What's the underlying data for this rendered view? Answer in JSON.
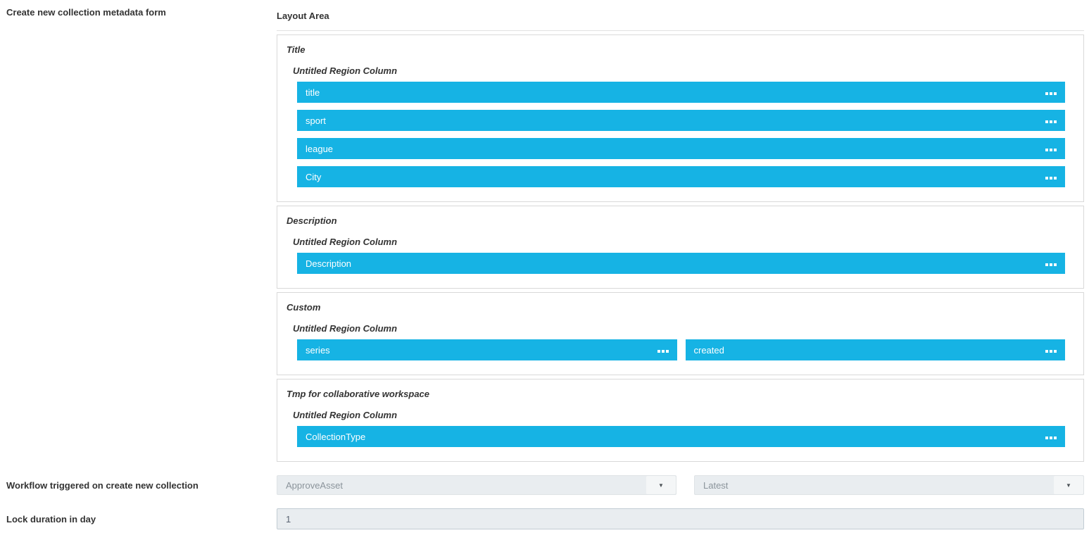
{
  "header": {
    "form_label": "Create new collection metadata form",
    "layout_area_label": "Layout Area"
  },
  "sections": [
    {
      "title": "Title",
      "region_label": "Untitled Region Column",
      "fields": [
        "title",
        "sport",
        "league",
        "City"
      ]
    },
    {
      "title": "Description",
      "region_label": "Untitled Region Column",
      "fields": [
        "Description"
      ]
    },
    {
      "title": "Custom",
      "region_label": "Untitled Region Column",
      "fields": [
        "series",
        "created"
      ]
    },
    {
      "title": "Tmp for collaborative workspace",
      "region_label": "Untitled Region Column",
      "fields": [
        "CollectionType"
      ]
    }
  ],
  "workflow_row": {
    "label": "Workflow triggered on create new collection",
    "workflow_select_value": "ApproveAsset",
    "version_select_value": "Latest"
  },
  "lock_row": {
    "label": "Lock duration in day",
    "value": "1"
  },
  "icons": {
    "dropdown_arrow_glyph": "▼"
  },
  "colors": {
    "field_bar": "#16b3e4",
    "section_border": "#d9d9d9",
    "select_background": "#e9edf0",
    "select_text": "#8b949b",
    "input_background": "#e9edf0",
    "label_text": "#333333"
  }
}
